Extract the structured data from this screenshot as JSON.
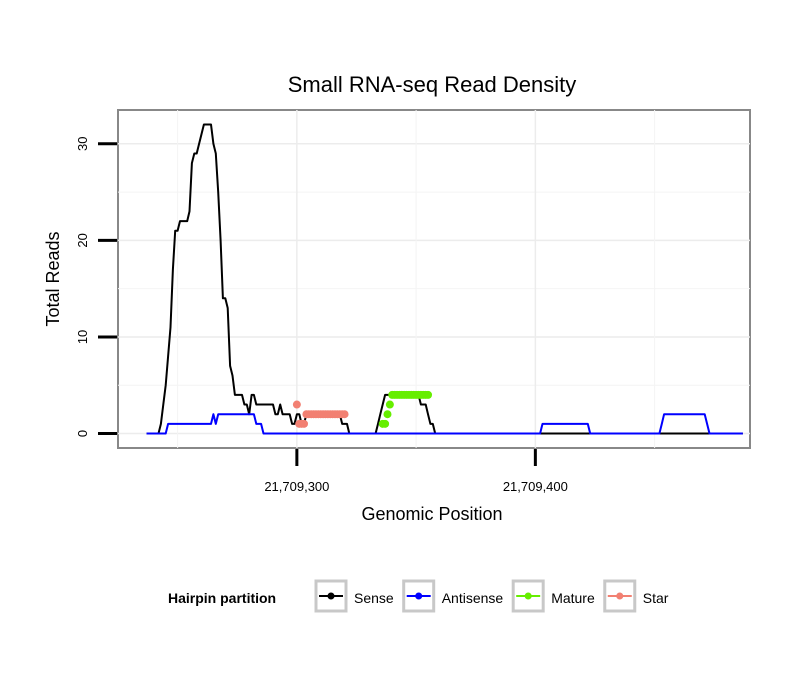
{
  "chart_data": {
    "type": "line",
    "title": "Small RNA-seq Read Density",
    "xlabel": "Genomic Position",
    "ylabel": "Total Reads",
    "xlim": [
      21709225,
      21709490
    ],
    "ylim": [
      -1.5,
      33.5
    ],
    "x_ticks": [
      {
        "value": 21709300,
        "label": "21,709,300"
      },
      {
        "value": 21709400,
        "label": "21,709,400"
      }
    ],
    "y_ticks": [
      {
        "value": 0,
        "label": "0"
      },
      {
        "value": 10,
        "label": "10"
      },
      {
        "value": 20,
        "label": "20"
      },
      {
        "value": 30,
        "label": "30"
      }
    ],
    "grid": true,
    "legend": {
      "title": "Hairpin partition",
      "position": "bottom",
      "entries": [
        {
          "name": "Sense",
          "color": "#000000"
        },
        {
          "name": "Antisense",
          "color": "#0000ff"
        },
        {
          "name": "Mature",
          "color": "#66ee00"
        },
        {
          "name": "Star",
          "color": "#f28072"
        }
      ]
    },
    "series": [
      {
        "name": "Sense",
        "color": "#000000",
        "style": "line",
        "points": [
          [
            21709237,
            0
          ],
          [
            21709242,
            0
          ],
          [
            21709243,
            1
          ],
          [
            21709244,
            3
          ],
          [
            21709245,
            5
          ],
          [
            21709246,
            8
          ],
          [
            21709247,
            11
          ],
          [
            21709248,
            17
          ],
          [
            21709249,
            21
          ],
          [
            21709250,
            21
          ],
          [
            21709251,
            22
          ],
          [
            21709253,
            22
          ],
          [
            21709254,
            22
          ],
          [
            21709255,
            23
          ],
          [
            21709256,
            28
          ],
          [
            21709257,
            29
          ],
          [
            21709258,
            29
          ],
          [
            21709259,
            30
          ],
          [
            21709260,
            31
          ],
          [
            21709261,
            32
          ],
          [
            21709264,
            32
          ],
          [
            21709265,
            30
          ],
          [
            21709266,
            29
          ],
          [
            21709267,
            25
          ],
          [
            21709268,
            20
          ],
          [
            21709269,
            14
          ],
          [
            21709270,
            14
          ],
          [
            21709271,
            13
          ],
          [
            21709272,
            7
          ],
          [
            21709273,
            6
          ],
          [
            21709274,
            4
          ],
          [
            21709277,
            4
          ],
          [
            21709278,
            3
          ],
          [
            21709279,
            3
          ],
          [
            21709280,
            2
          ],
          [
            21709281,
            4
          ],
          [
            21709282,
            4
          ],
          [
            21709283,
            3
          ],
          [
            21709290,
            3
          ],
          [
            21709291,
            2
          ],
          [
            21709292,
            2
          ],
          [
            21709293,
            3
          ],
          [
            21709294,
            2
          ],
          [
            21709297,
            2
          ],
          [
            21709298,
            1
          ],
          [
            21709299,
            1
          ],
          [
            21709300,
            2
          ],
          [
            21709301,
            2
          ],
          [
            21709302,
            1
          ],
          [
            21709303,
            1
          ],
          [
            21709304,
            2
          ],
          [
            21709318,
            2
          ],
          [
            21709319,
            1
          ],
          [
            21709321,
            1
          ],
          [
            21709322,
            0
          ],
          [
            21709333,
            0
          ],
          [
            21709334,
            1
          ],
          [
            21709335,
            2
          ],
          [
            21709336,
            3
          ],
          [
            21709337,
            4
          ],
          [
            21709351,
            4
          ],
          [
            21709352,
            3
          ],
          [
            21709354,
            3
          ],
          [
            21709355,
            2
          ],
          [
            21709356,
            1
          ],
          [
            21709357,
            1
          ],
          [
            21709358,
            0
          ],
          [
            21709487,
            0
          ]
        ]
      },
      {
        "name": "Antisense",
        "color": "#0000ff",
        "style": "line",
        "points": [
          [
            21709237,
            0
          ],
          [
            21709245,
            0
          ],
          [
            21709246,
            1
          ],
          [
            21709262,
            1
          ],
          [
            21709264,
            1
          ],
          [
            21709265,
            2
          ],
          [
            21709266,
            1
          ],
          [
            21709267,
            2
          ],
          [
            21709282,
            2
          ],
          [
            21709283,
            1
          ],
          [
            21709285,
            1
          ],
          [
            21709286,
            0
          ],
          [
            21709402,
            0
          ],
          [
            21709403,
            1
          ],
          [
            21709422,
            1
          ],
          [
            21709423,
            0
          ],
          [
            21709452,
            0
          ],
          [
            21709453,
            1
          ],
          [
            21709454,
            2
          ],
          [
            21709471,
            2
          ],
          [
            21709472,
            1
          ],
          [
            21709473,
            0
          ],
          [
            21709487,
            0
          ]
        ]
      },
      {
        "name": "Mature",
        "color": "#66ee00",
        "style": "points",
        "points": [
          [
            21709336,
            1
          ],
          [
            21709337,
            1
          ],
          [
            21709338,
            2
          ],
          [
            21709339,
            3
          ],
          [
            21709340,
            4
          ],
          [
            21709341,
            4
          ],
          [
            21709342,
            4
          ],
          [
            21709343,
            4
          ],
          [
            21709344,
            4
          ],
          [
            21709345,
            4
          ],
          [
            21709346,
            4
          ],
          [
            21709347,
            4
          ],
          [
            21709348,
            4
          ],
          [
            21709349,
            4
          ],
          [
            21709350,
            4
          ],
          [
            21709351,
            4
          ],
          [
            21709352,
            4
          ],
          [
            21709353,
            4
          ],
          [
            21709354,
            4
          ],
          [
            21709355,
            4
          ]
        ]
      },
      {
        "name": "Star",
        "color": "#f28072",
        "style": "points",
        "points": [
          [
            21709300,
            3
          ],
          [
            21709301,
            1
          ],
          [
            21709302,
            1
          ],
          [
            21709303,
            1
          ],
          [
            21709304,
            2
          ],
          [
            21709305,
            2
          ],
          [
            21709306,
            2
          ],
          [
            21709307,
            2
          ],
          [
            21709308,
            2
          ],
          [
            21709309,
            2
          ],
          [
            21709310,
            2
          ],
          [
            21709311,
            2
          ],
          [
            21709312,
            2
          ],
          [
            21709313,
            2
          ],
          [
            21709314,
            2
          ],
          [
            21709315,
            2
          ],
          [
            21709316,
            2
          ],
          [
            21709317,
            2
          ],
          [
            21709318,
            2
          ],
          [
            21709319,
            2
          ],
          [
            21709320,
            2
          ]
        ]
      }
    ]
  }
}
